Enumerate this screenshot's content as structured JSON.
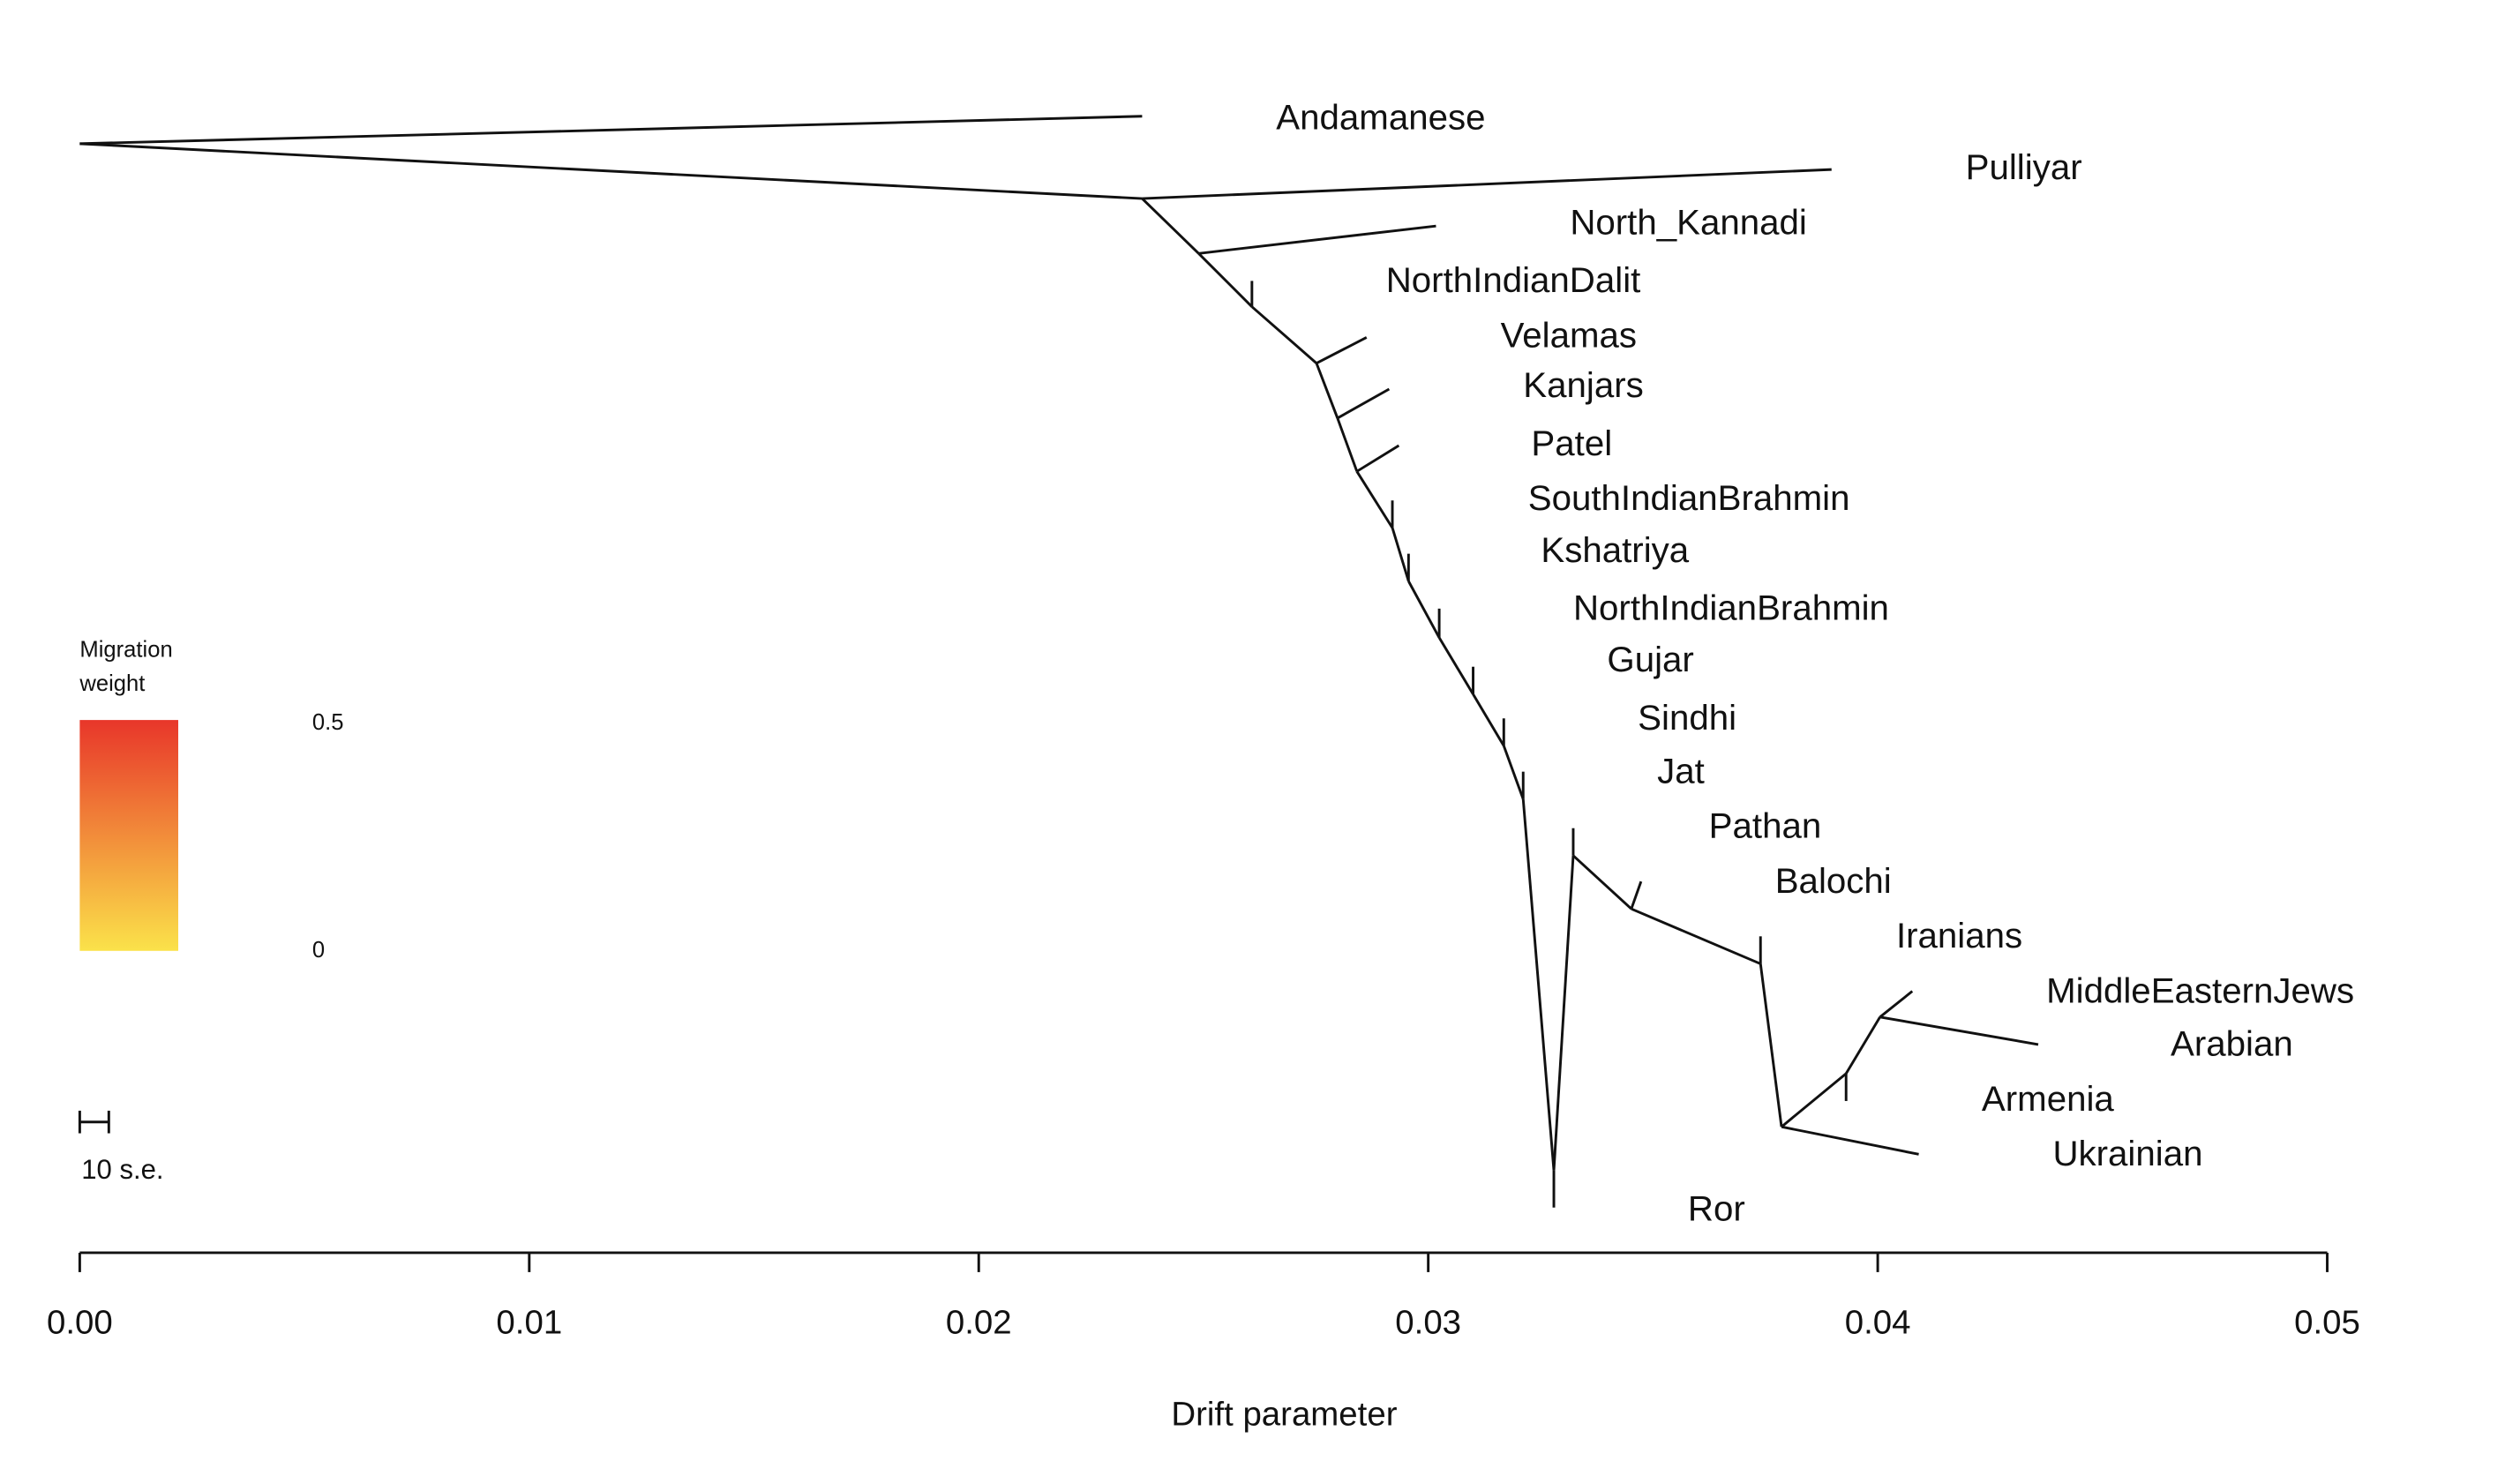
{
  "chart_data": {
    "type": "tree",
    "xlabel": "Drift parameter",
    "xlim": [
      0,
      0.05
    ],
    "xticks": [
      "0.00",
      "0.01",
      "0.02",
      "0.03",
      "0.04",
      "0.05"
    ],
    "tips": [
      "Andamanese",
      "Pulliyar",
      "North_Kannadi",
      "NorthIndianDalit",
      "Velamas",
      "Kanjars",
      "Patel",
      "SouthIndianBrahmin",
      "Kshatriya",
      "NorthIndianBrahmin",
      "Gujar",
      "Sindhi",
      "Jat",
      "Pathan",
      "Balochi",
      "Iranians",
      "MiddleEasternJews",
      "Arabian",
      "Armenia",
      "Ukrainian",
      "Ror"
    ],
    "legend": {
      "title_line1": "Migration",
      "title_line2": "weight",
      "max_label": "0.5",
      "min_label": "0",
      "color_high": "#e8362a",
      "color_low": "#fbe24a"
    },
    "scale_bar_label": "10 s.e."
  }
}
